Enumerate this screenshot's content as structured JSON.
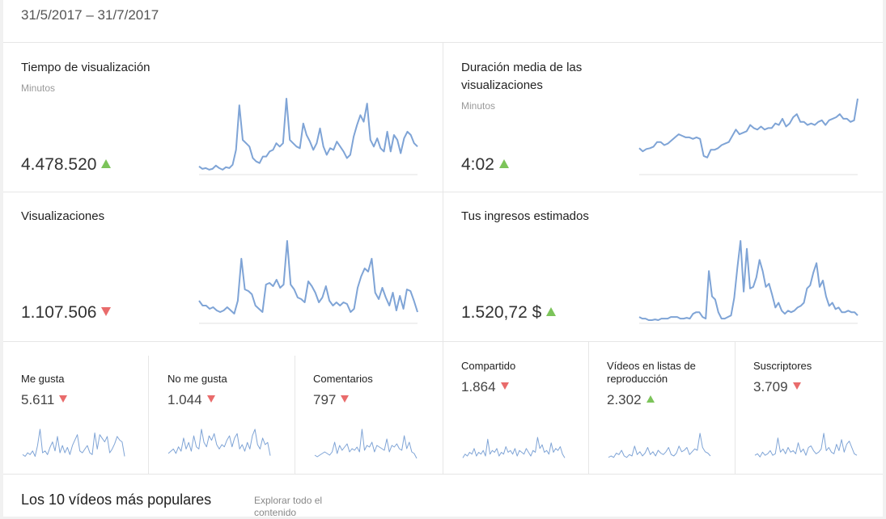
{
  "date_range": "31/5/2017 – 31/7/2017",
  "colors": {
    "line": "#7fa4d6",
    "axis": "#e2e2e2",
    "up": "#7cc45a",
    "down": "#e96b6b"
  },
  "big_cards": [
    {
      "title": "Tiempo de visualización",
      "subtitle": "Minutos",
      "value": "4.478.520",
      "trend": "up",
      "trend_icon": "arrow-up-icon",
      "series": [
        8,
        5,
        6,
        4,
        5,
        9,
        6,
        4,
        7,
        6,
        10,
        28,
        82,
        40,
        36,
        32,
        18,
        14,
        12,
        20,
        20,
        26,
        28,
        36,
        32,
        36,
        90,
        40,
        36,
        32,
        30,
        60,
        46,
        38,
        28,
        36,
        54,
        32,
        22,
        30,
        28,
        38,
        32,
        26,
        18,
        22,
        44,
        58,
        70,
        62,
        84,
        40,
        32,
        42,
        30,
        26,
        50,
        26,
        46,
        40,
        24,
        42,
        50,
        46,
        36,
        32
      ]
    },
    {
      "title": "Duración media de las visualizaciones",
      "subtitle": "Minutos",
      "value": "4:02",
      "trend": "up",
      "trend_icon": "arrow-up-icon",
      "series": [
        32,
        28,
        31,
        32,
        34,
        40,
        40,
        36,
        38,
        42,
        46,
        50,
        48,
        46,
        46,
        44,
        46,
        44,
        22,
        20,
        30,
        30,
        32,
        36,
        38,
        40,
        48,
        56,
        50,
        52,
        54,
        62,
        58,
        56,
        60,
        56,
        58,
        58,
        64,
        62,
        70,
        60,
        64,
        72,
        76,
        66,
        66,
        62,
        64,
        62,
        66,
        68,
        62,
        68,
        70,
        72,
        76,
        70,
        70,
        66,
        68,
        96
      ]
    },
    {
      "title": "Visualizaciones",
      "subtitle": "",
      "value": "1.107.506",
      "trend": "down",
      "trend_icon": "arrow-down-icon",
      "series": [
        26,
        20,
        20,
        16,
        18,
        14,
        12,
        14,
        18,
        14,
        10,
        26,
        78,
        40,
        38,
        34,
        20,
        16,
        12,
        46,
        48,
        44,
        52,
        42,
        46,
        100,
        46,
        40,
        30,
        28,
        24,
        50,
        44,
        36,
        24,
        30,
        44,
        26,
        20,
        24,
        20,
        24,
        22,
        12,
        16,
        42,
        56,
        66,
        62,
        78,
        36,
        28,
        42,
        30,
        20,
        36,
        14,
        32,
        16,
        40,
        38,
        26,
        12
      ]
    },
    {
      "title": "Tus ingresos estimados",
      "subtitle": "",
      "value": "1.520,72 $",
      "trend": "up",
      "trend_icon": "arrow-up-icon",
      "series": [
        6,
        4,
        4,
        2,
        2,
        3,
        2,
        4,
        4,
        4,
        6,
        6,
        6,
        4,
        4,
        5,
        4,
        10,
        12,
        12,
        6,
        4,
        64,
        32,
        28,
        12,
        4,
        4,
        6,
        8,
        30,
        68,
        102,
        38,
        92,
        42,
        44,
        56,
        78,
        64,
        44,
        48,
        34,
        18,
        24,
        14,
        10,
        14,
        12,
        14,
        18,
        20,
        24,
        42,
        46,
        62,
        74,
        44,
        52,
        32,
        20,
        24,
        16,
        18,
        12,
        12,
        14,
        12,
        12,
        8
      ]
    }
  ],
  "small_cards": [
    {
      "title": "Me gusta",
      "value": "5.611",
      "trend": "down",
      "trend_icon": "arrow-down-icon",
      "series": [
        6,
        4,
        8,
        6,
        10,
        4,
        16,
        34,
        8,
        10,
        6,
        14,
        20,
        10,
        26,
        8,
        16,
        8,
        14,
        6,
        16,
        22,
        28,
        10,
        8,
        12,
        16,
        8,
        6,
        30,
        12,
        28,
        24,
        20,
        26,
        8,
        12,
        18,
        26,
        22,
        20,
        4
      ]
    },
    {
      "title": "No me gusta",
      "value": "1.044",
      "trend": "down",
      "trend_icon": "arrow-down-icon",
      "series": [
        6,
        8,
        10,
        6,
        12,
        8,
        20,
        10,
        16,
        8,
        22,
        12,
        10,
        28,
        16,
        12,
        22,
        18,
        24,
        14,
        10,
        14,
        12,
        18,
        22,
        12,
        20,
        24,
        10,
        14,
        8,
        16,
        10,
        22,
        28,
        14,
        10,
        20,
        14,
        16,
        4
      ]
    },
    {
      "title": "Comentarios",
      "value": "797",
      "trend": "down",
      "trend_icon": "arrow-down-icon",
      "series": [
        6,
        4,
        6,
        8,
        10,
        8,
        6,
        10,
        22,
        8,
        18,
        12,
        16,
        20,
        10,
        14,
        12,
        16,
        10,
        38,
        12,
        18,
        16,
        22,
        10,
        18,
        16,
        14,
        12,
        26,
        10,
        18,
        16,
        20,
        14,
        12,
        30,
        14,
        22,
        10,
        8,
        2
      ]
    },
    {
      "title": "Compartido",
      "value": "1.864",
      "trend": "down",
      "trend_icon": "arrow-down-icon",
      "series": [
        4,
        8,
        6,
        10,
        8,
        14,
        6,
        10,
        8,
        12,
        6,
        24,
        8,
        12,
        10,
        14,
        6,
        10,
        8,
        16,
        10,
        12,
        8,
        14,
        6,
        12,
        10,
        8,
        14,
        10,
        6,
        12,
        10,
        26,
        14,
        18,
        10,
        12,
        8,
        20,
        10,
        14,
        12,
        16,
        8,
        4
      ]
    },
    {
      "title": "Vídeos en listas de reproducción",
      "value": "2.302",
      "trend": "up",
      "trend_icon": "arrow-up-icon",
      "series": [
        6,
        8,
        6,
        12,
        10,
        16,
        8,
        6,
        10,
        8,
        22,
        10,
        14,
        8,
        12,
        20,
        10,
        14,
        8,
        16,
        12,
        10,
        14,
        20,
        10,
        8,
        12,
        22,
        14,
        16,
        20,
        10,
        14,
        18,
        16,
        40,
        20,
        14,
        12,
        8
      ]
    },
    {
      "title": "Suscriptores",
      "value": "3.709",
      "trend": "down",
      "trend_icon": "arrow-down-icon",
      "series": [
        8,
        10,
        6,
        12,
        8,
        10,
        14,
        8,
        10,
        30,
        12,
        16,
        10,
        18,
        12,
        14,
        10,
        24,
        12,
        16,
        8,
        18,
        20,
        14,
        10,
        12,
        16,
        36,
        14,
        18,
        12,
        10,
        22,
        14,
        28,
        12,
        22,
        26,
        18,
        10,
        8
      ]
    }
  ],
  "footer": {
    "title": "Los 10 vídeos más populares",
    "link": "Explorar todo el contenido"
  }
}
